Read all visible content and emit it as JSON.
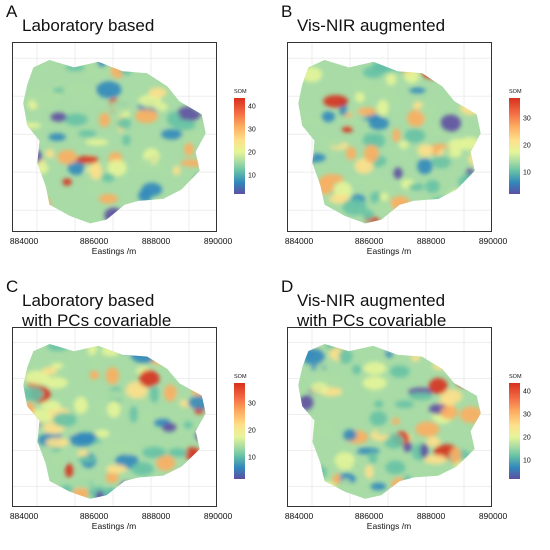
{
  "panels": [
    {
      "letter": "A",
      "title_lines": [
        "Laboratory based"
      ],
      "legend_title": "SOM",
      "legend_ticks": [
        "40",
        "30",
        "20",
        "10"
      ],
      "scale_max": 44
    },
    {
      "letter": "B",
      "title_lines": [
        "Vis-NIR augmented"
      ],
      "legend_title": "SOM",
      "legend_ticks": [
        "30",
        "20",
        "10"
      ],
      "scale_max": 38
    },
    {
      "letter": "C",
      "title_lines": [
        "Laboratory based",
        "with PCs covariable"
      ],
      "legend_title": "SOM",
      "legend_ticks": [
        "30",
        "20",
        "10"
      ],
      "scale_max": 38
    },
    {
      "letter": "D",
      "title_lines": [
        "Vis-NIR augmented",
        "with PCs covariable"
      ],
      "legend_title": "SOM",
      "legend_ticks": [
        "40",
        "30",
        "20",
        "10"
      ],
      "scale_max": 44
    }
  ],
  "x_ticks": [
    "884000",
    "886000",
    "888000",
    "890000"
  ],
  "x_axis_label": "Eastings /m",
  "colors": {
    "low": "#5e4fa2",
    "blue": "#3288bd",
    "teal": "#66c2a5",
    "green": "#abdda4",
    "lightgreen": "#e6f598",
    "yellow": "#fee08b",
    "orange": "#fdae61",
    "red": "#d7301f"
  }
}
